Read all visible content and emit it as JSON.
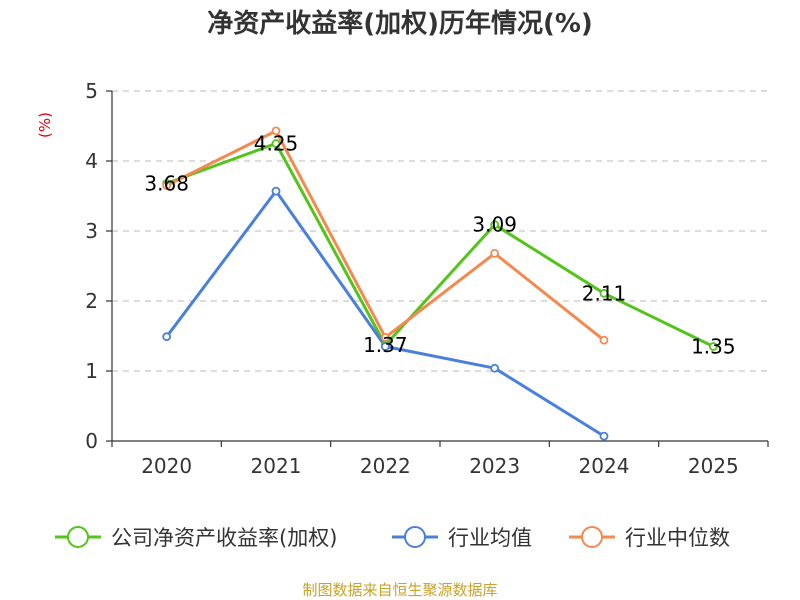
{
  "chart_data": {
    "type": "line",
    "title": "净资产收益率(加权)历年情况(%)",
    "ylabel": "(%)",
    "xlabel": "",
    "categories": [
      "2020",
      "2021",
      "2022",
      "2023",
      "2024",
      "2025"
    ],
    "ylim": [
      0,
      5
    ],
    "yticks": [
      "0",
      "1",
      "2",
      "3",
      "4",
      "5"
    ],
    "grid": true,
    "legend_position": "bottom",
    "series": [
      {
        "name": "公司净资产收益率(加权)",
        "color": "#52c41a",
        "values": [
          3.68,
          4.25,
          1.37,
          3.09,
          2.11,
          1.35
        ],
        "labels": [
          "3.68",
          "4.25",
          "1.37",
          "3.09",
          "2.11",
          "1.35"
        ]
      },
      {
        "name": "行业均值",
        "color": "#4a7fdc",
        "values": [
          1.49,
          3.57,
          1.35,
          1.04,
          0.07,
          null
        ]
      },
      {
        "name": "行业中位数",
        "color": "#f4894f",
        "values": [
          3.65,
          4.43,
          1.48,
          2.68,
          1.44,
          null
        ]
      }
    ],
    "source": "制图数据来自恒生聚源数据库"
  }
}
